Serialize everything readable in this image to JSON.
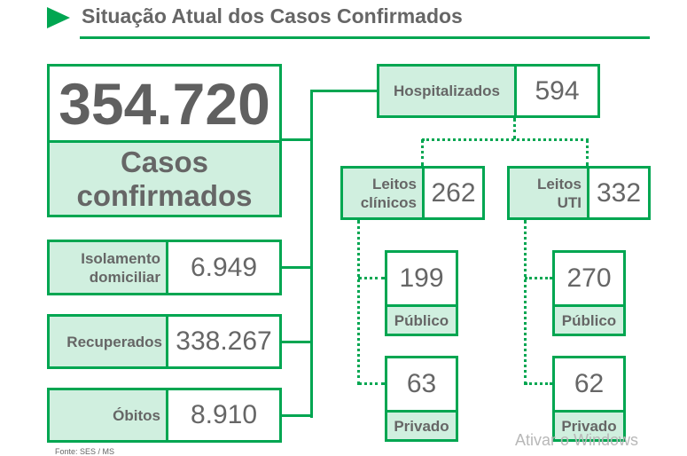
{
  "title": "Situação Atual dos Casos Confirmados",
  "total": {
    "value": "354.720",
    "label": "Casos confirmados"
  },
  "isolamento": {
    "label": "Isolamento domiciliar",
    "value": "6.949"
  },
  "recuperados": {
    "label": "Recuperados",
    "value": "338.267"
  },
  "obitos": {
    "label": "Óbitos",
    "value": "8.910"
  },
  "hospitalizados": {
    "label": "Hospitalizados",
    "value": "594"
  },
  "clinicos": {
    "label": "Leitos clínicos",
    "value": "262",
    "publico": "199",
    "publico_label": "Público",
    "privado": "63",
    "privado_label": "Privado"
  },
  "uti": {
    "label": "Leitos UTI",
    "value": "332",
    "publico": "270",
    "publico_label": "Público",
    "privado": "62",
    "privado_label": "Privado"
  },
  "source": "Fonte: SES / MS",
  "watermark": "Ativar o Windows",
  "colors": {
    "accent": "#00a651",
    "fill": "#d0efdf",
    "text": "#666666"
  }
}
